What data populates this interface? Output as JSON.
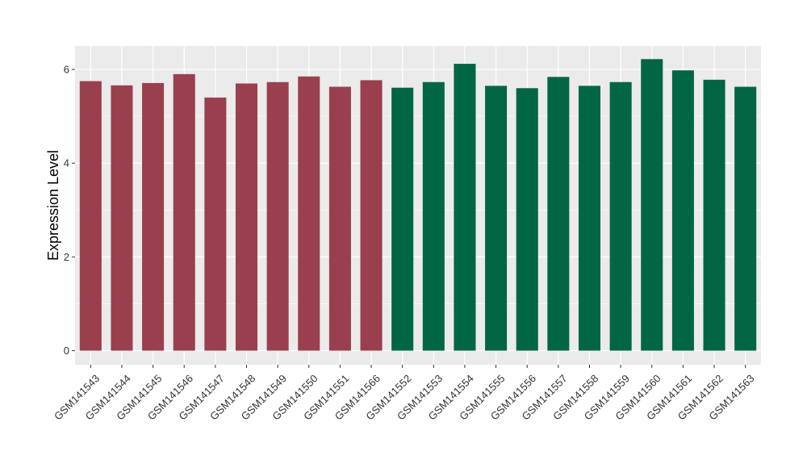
{
  "chart_data": {
    "type": "bar",
    "title": "",
    "xlabel": "",
    "ylabel": "Expression Level",
    "ylim": [
      -0.3,
      6.5
    ],
    "yticks": [
      0,
      2,
      4,
      6
    ],
    "grid": true,
    "legend": "none",
    "categories": [
      "GSM141543",
      "GSM141544",
      "GSM141545",
      "GSM141546",
      "GSM141547",
      "GSM141548",
      "GSM141549",
      "GSM141550",
      "GSM141551",
      "GSM141566",
      "GSM141552",
      "GSM141553",
      "GSM141554",
      "GSM141555",
      "GSM141556",
      "GSM141557",
      "GSM141558",
      "GSM141559",
      "GSM141560",
      "GSM141561",
      "GSM141562",
      "GSM141563"
    ],
    "values": [
      5.75,
      5.66,
      5.71,
      5.9,
      5.4,
      5.7,
      5.73,
      5.85,
      5.63,
      5.77,
      5.61,
      5.73,
      6.12,
      5.65,
      5.6,
      5.84,
      5.65,
      5.73,
      6.22,
      5.98,
      5.78,
      5.63
    ],
    "groups": [
      0,
      0,
      0,
      0,
      0,
      0,
      0,
      0,
      0,
      0,
      1,
      1,
      1,
      1,
      1,
      1,
      1,
      1,
      1,
      1,
      1,
      1
    ],
    "colors": [
      "#9a3f4d",
      "#006644"
    ],
    "panel_background": "#ebebeb",
    "grid_color": "#ffffff"
  }
}
